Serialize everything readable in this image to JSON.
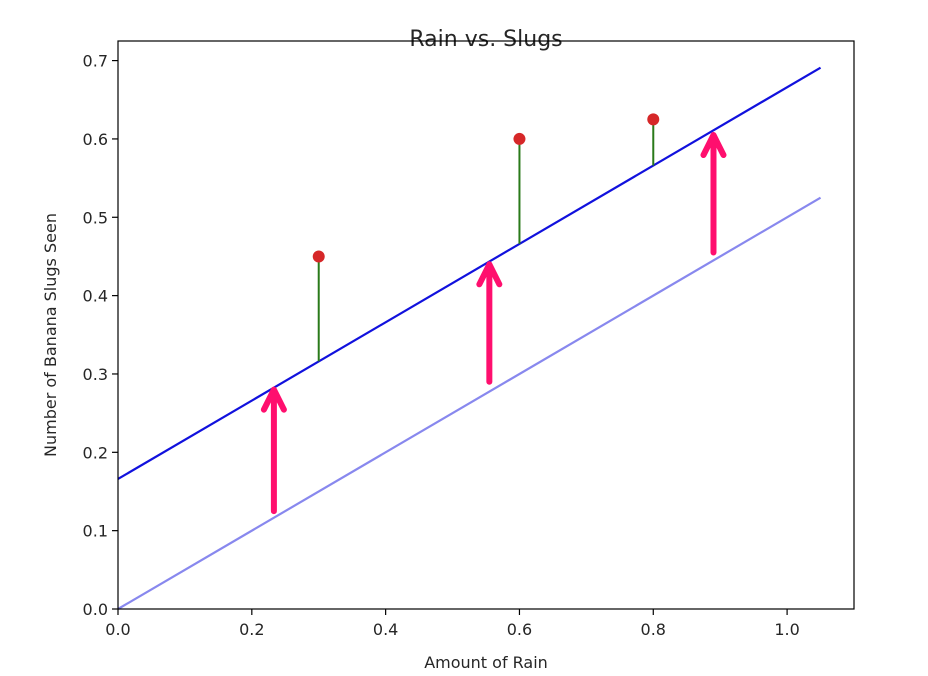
{
  "chart_data": {
    "type": "scatter",
    "title": "Rain vs. Slugs",
    "xlabel": "Amount of Rain",
    "ylabel": "Number of Banana Slugs Seen",
    "xlim": [
      0.0,
      1.1
    ],
    "ylim": [
      0.0,
      0.725
    ],
    "xticks": [
      0.0,
      0.2,
      0.4,
      0.6,
      0.8,
      1.0
    ],
    "xtick_labels": [
      "0.0",
      "0.2",
      "0.4",
      "0.6",
      "0.8",
      "1.0"
    ],
    "yticks": [
      0.0,
      0.1,
      0.2,
      0.3,
      0.4,
      0.5,
      0.6,
      0.7
    ],
    "ytick_labels": [
      "0.0",
      "0.1",
      "0.2",
      "0.3",
      "0.4",
      "0.5",
      "0.6",
      "0.7"
    ],
    "points": {
      "name": "observations",
      "x": [
        0.3,
        0.6,
        0.8
      ],
      "y": [
        0.45,
        0.6,
        0.625
      ],
      "color": "#d62728"
    },
    "lines": [
      {
        "name": "original-fit",
        "x": [
          0.0,
          1.05
        ],
        "y": [
          0.0,
          0.525
        ],
        "color": "#8888ee"
      },
      {
        "name": "shifted-fit",
        "x": [
          0.0,
          1.05
        ],
        "y": [
          0.166,
          0.691
        ],
        "color": "#1111dd"
      }
    ],
    "residuals": {
      "x": [
        0.3,
        0.6,
        0.8
      ],
      "from_y": [
        0.316,
        0.466,
        0.566
      ],
      "to_y": [
        0.45,
        0.6,
        0.625
      ],
      "color": "#2a7a1a"
    },
    "shift_arrows": {
      "x": [
        0.233,
        0.555,
        0.89
      ],
      "from_y": [
        0.125,
        0.29,
        0.455
      ],
      "to_y": [
        0.28,
        0.44,
        0.605
      ],
      "color": "#ff0f6e"
    },
    "frame_color": "#000000",
    "grid": false,
    "legend": "none"
  }
}
